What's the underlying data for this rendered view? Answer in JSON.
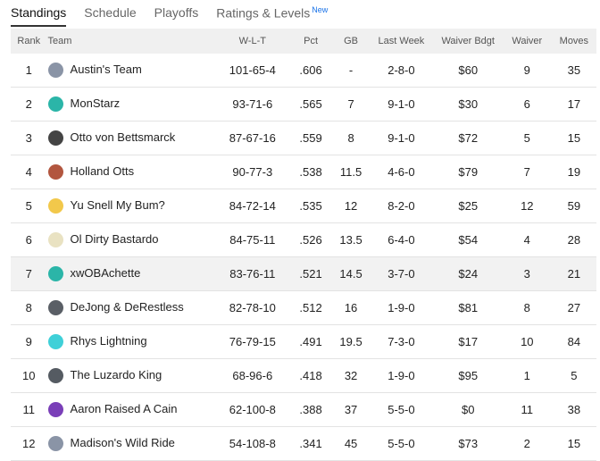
{
  "tabs": [
    "Standings",
    "Schedule",
    "Playoffs",
    "Ratings & Levels"
  ],
  "tab_badge": "New",
  "table": {
    "headers": [
      "Rank",
      "Team",
      "W-L-T",
      "Pct",
      "GB",
      "Last Week",
      "Waiver Bdgt",
      "Waiver",
      "Moves"
    ],
    "rows": [
      [
        "1",
        "Austin's Team",
        "101-65-4",
        ".606",
        "-",
        "2-8-0",
        "$60",
        "9",
        "35"
      ],
      [
        "2",
        "MonStarz",
        "93-71-6",
        ".565",
        "7",
        "9-1-0",
        "$30",
        "6",
        "17"
      ],
      [
        "3",
        "Otto von Bettsmarck",
        "87-67-16",
        ".559",
        "8",
        "9-1-0",
        "$72",
        "5",
        "15"
      ],
      [
        "4",
        "Holland Otts",
        "90-77-3",
        ".538",
        "11.5",
        "4-6-0",
        "$79",
        "7",
        "19"
      ],
      [
        "5",
        "Yu Snell My Bum?",
        "84-72-14",
        ".535",
        "12",
        "8-2-0",
        "$25",
        "12",
        "59"
      ],
      [
        "6",
        "Ol Dirty Bastardo",
        "84-75-11",
        ".526",
        "13.5",
        "6-4-0",
        "$54",
        "4",
        "28"
      ],
      [
        "7",
        "xwOBAchette",
        "83-76-11",
        ".521",
        "14.5",
        "3-7-0",
        "$24",
        "3",
        "21"
      ],
      [
        "8",
        "DeJong & DeRestless",
        "82-78-10",
        ".512",
        "16",
        "1-9-0",
        "$81",
        "8",
        "27"
      ],
      [
        "9",
        "Rhys Lightning",
        "76-79-15",
        ".491",
        "19.5",
        "7-3-0",
        "$17",
        "10",
        "84"
      ],
      [
        "10",
        "The Luzardo King",
        "68-96-6",
        ".418",
        "32",
        "1-9-0",
        "$95",
        "1",
        "5"
      ],
      [
        "11",
        "Aaron Raised A Cain",
        "62-100-8",
        ".388",
        "37",
        "5-5-0",
        "$0",
        "11",
        "38"
      ],
      [
        "12",
        "Madison's Wild Ride",
        "54-108-8",
        ".341",
        "45",
        "5-5-0",
        "$73",
        "2",
        "15"
      ]
    ]
  }
}
